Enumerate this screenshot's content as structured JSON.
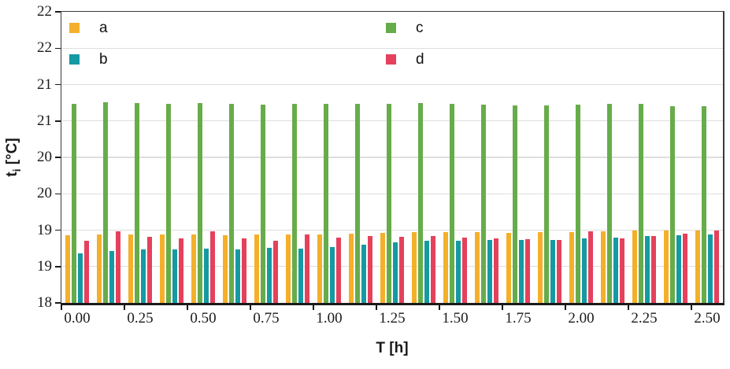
{
  "style": {
    "background": "#ffffff",
    "frame_color": "#3a3a3a",
    "axis_line_color": "#1a1a1a",
    "gridline_color": "#dedede",
    "text_color": "#1a1a1a"
  },
  "chart_data": {
    "type": "bar",
    "title": "",
    "xlabel": "T [h]",
    "ylabel": "t_i [°C]",
    "y_axis": {
      "title_main": "t",
      "title_sub": "i",
      "title_rest": " [°C]"
    },
    "ylim": [
      18,
      22
    ],
    "y_tick_step": 0.5,
    "y_tick_labels_bottom_to_top": [
      "18",
      "19",
      "19",
      "20",
      "20",
      "21",
      "21",
      "22",
      "22"
    ],
    "x_tick_labels": [
      "0.00",
      "0.25",
      "0.50",
      "0.75",
      "1.00",
      "1.25",
      "1.50",
      "1.75",
      "2.00",
      "2.25",
      "2.50"
    ],
    "grid": "horizontal",
    "x": [
      0.0,
      0.125,
      0.25,
      0.375,
      0.5,
      0.625,
      0.75,
      0.875,
      1.0,
      1.125,
      1.25,
      1.375,
      1.5,
      1.625,
      1.75,
      1.875,
      2.0,
      2.125,
      2.25,
      2.375,
      2.5
    ],
    "plot_order": [
      "a",
      "c",
      "b",
      "d"
    ],
    "series": [
      {
        "name": "a",
        "color": "#F4B02A",
        "values": [
          18.93,
          18.94,
          18.94,
          18.94,
          18.94,
          18.93,
          18.94,
          18.94,
          18.94,
          18.95,
          18.96,
          18.97,
          18.97,
          18.97,
          18.96,
          18.97,
          18.97,
          18.98,
          18.99,
          18.99,
          18.99
        ]
      },
      {
        "name": "b",
        "color": "#1599A3",
        "values": [
          18.68,
          18.71,
          18.73,
          18.74,
          18.75,
          18.74,
          18.76,
          18.75,
          18.77,
          18.8,
          18.83,
          18.85,
          18.85,
          18.86,
          18.86,
          18.87,
          18.89,
          18.9,
          18.92,
          18.93,
          18.94
        ]
      },
      {
        "name": "c",
        "color": "#67AC4A",
        "values": [
          20.73,
          20.76,
          20.75,
          20.74,
          20.75,
          20.73,
          20.72,
          20.73,
          20.73,
          20.74,
          20.74,
          20.75,
          20.74,
          20.72,
          20.71,
          20.71,
          20.72,
          20.73,
          20.73,
          20.7,
          20.7
        ]
      },
      {
        "name": "d",
        "color": "#E5415C",
        "values": [
          18.85,
          18.98,
          18.91,
          18.89,
          18.98,
          18.89,
          18.85,
          18.94,
          18.9,
          18.92,
          18.91,
          18.92,
          18.9,
          18.89,
          18.88,
          18.87,
          18.98,
          18.89,
          18.92,
          18.95,
          18.99
        ]
      }
    ],
    "legend": {
      "position": "inside-top-left",
      "columns": [
        [
          "a",
          "b"
        ],
        [
          "c",
          "d"
        ]
      ]
    }
  }
}
